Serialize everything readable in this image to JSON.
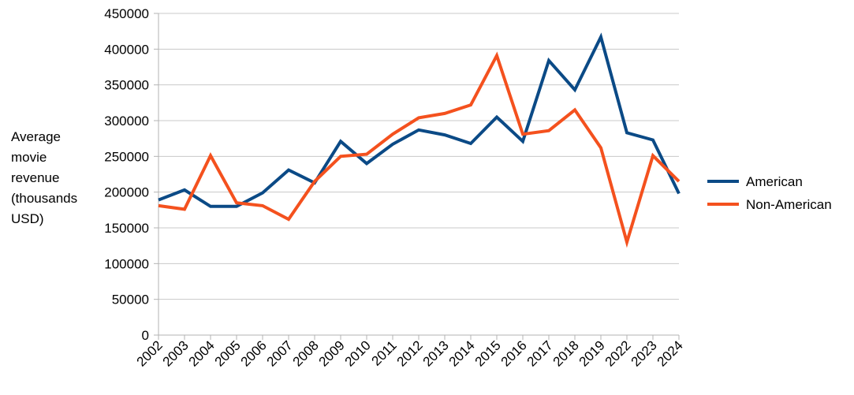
{
  "chart_data": {
    "type": "line",
    "title": "",
    "xlabel": "",
    "ylabel_lines": [
      "Average",
      "movie",
      "revenue",
      "(thousands",
      "USD)"
    ],
    "categories": [
      "2002",
      "2003",
      "2004",
      "2005",
      "2006",
      "2007",
      "2008",
      "2009",
      "2010",
      "2011",
      "2012",
      "2013",
      "2014",
      "2015",
      "2016",
      "2017",
      "2018",
      "2019",
      "2022",
      "2023",
      "2024"
    ],
    "yticks": [
      "0",
      "50000",
      "100000",
      "150000",
      "200000",
      "250000",
      "300000",
      "350000",
      "400000",
      "450000"
    ],
    "ylim": [
      0,
      450000
    ],
    "grid": "horizontal",
    "legend_position": "right",
    "series": [
      {
        "name": "American",
        "color": "#0b4a86",
        "values": [
          189000,
          203000,
          180000,
          180000,
          199000,
          231000,
          213000,
          271000,
          240000,
          267000,
          287000,
          280000,
          268000,
          305000,
          271000,
          384000,
          343000,
          417000,
          283000,
          273000,
          198000
        ]
      },
      {
        "name": "Non-American",
        "color": "#f4511e",
        "values": [
          181000,
          176000,
          251000,
          185000,
          181000,
          162000,
          215000,
          250000,
          253000,
          281000,
          304000,
          310000,
          322000,
          391000,
          281000,
          286000,
          315000,
          262000,
          130000,
          251000,
          215000
        ]
      }
    ]
  }
}
